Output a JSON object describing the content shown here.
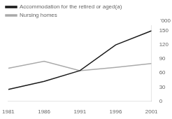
{
  "chart_data": {
    "type": "line",
    "x": [
      1981,
      1986,
      1991,
      1996,
      2001
    ],
    "series": [
      {
        "name": "Accommodation for the retired or aged(a)",
        "color": "#1a1a1a",
        "values": [
          25,
          42,
          65,
          120,
          150
        ]
      },
      {
        "name": "Nursing homes",
        "color": "#aaaaaa",
        "values": [
          70,
          85,
          65,
          72,
          80
        ]
      }
    ],
    "ylabel": "'000",
    "xlim": [
      1981,
      2001
    ],
    "xticks": [
      1981,
      1986,
      1991,
      1996,
      2001
    ],
    "ylim": [
      0,
      162
    ],
    "yticks": [
      0,
      30,
      60,
      90,
      120,
      150
    ],
    "grid": false,
    "legend": "upper left"
  }
}
